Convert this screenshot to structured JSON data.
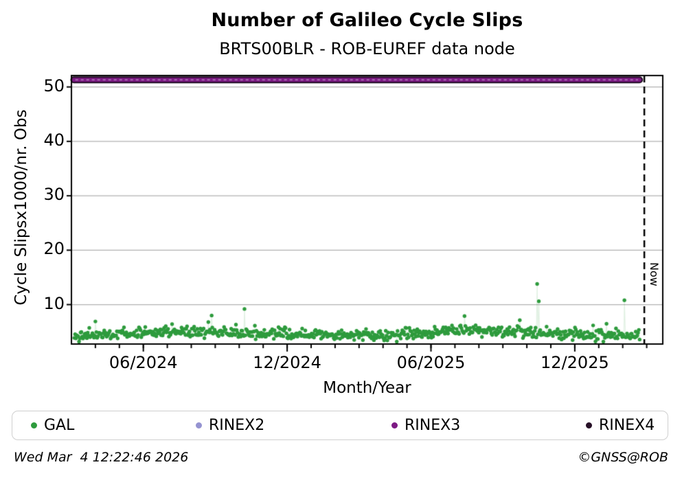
{
  "chart_data": {
    "type": "scatter",
    "title": "Number of Galileo Cycle Slips",
    "subtitle": "BRTS00BLR - ROB-EUREF data node",
    "xlabel": "Month/Year",
    "ylabel": "Cycle Slipsx1000/nr. Obs",
    "x_axis": {
      "start_month": "03/2024",
      "months_span": 24.67,
      "minor_tick_every_months": 1,
      "major_ticks": [
        {
          "month_offset": 3,
          "label": "06/2024"
        },
        {
          "month_offset": 9,
          "label": "12/2024"
        },
        {
          "month_offset": 15,
          "label": "06/2025"
        },
        {
          "month_offset": 21,
          "label": "12/2025"
        }
      ],
      "now_marker": {
        "month_offset": 23.9,
        "label": "Now",
        "line_style": "dashed",
        "color": "#000000"
      }
    },
    "y_axis": {
      "min": 2.75,
      "max": 52.1,
      "ticks": [
        10,
        20,
        30,
        40,
        50
      ],
      "grid": true,
      "grid_color": "#b0b0b0"
    },
    "series": [
      {
        "name": "GAL",
        "type": "daily-scatter",
        "color": "#2e9b3d",
        "connector_line_color": "rgba(47,155,61,0.15)",
        "marker_radius": 2.7,
        "month_start": 0.12,
        "month_end": 23.72,
        "points_per_month": 30.4,
        "random_seed": 42,
        "noise_sigma": 0.5,
        "value_floor": 3.2,
        "value_ceil": 7.4,
        "upper_tail_probability": 0.045,
        "upper_tail_max": 1.4,
        "baseline_monthly_mean": [
          [
            0.12,
            4.35
          ],
          [
            1.5,
            4.6
          ],
          [
            3,
            4.85
          ],
          [
            4.5,
            5.0
          ],
          [
            6,
            5.0
          ],
          [
            7.5,
            4.7
          ],
          [
            9,
            4.55
          ],
          [
            10.5,
            4.35
          ],
          [
            12,
            4.35
          ],
          [
            13.5,
            4.45
          ],
          [
            14.5,
            4.7
          ],
          [
            16,
            5.1
          ],
          [
            17.5,
            5.2
          ],
          [
            19,
            4.9
          ],
          [
            19.8,
            4.5
          ],
          [
            21,
            4.4
          ],
          [
            23.72,
            4.35
          ]
        ],
        "outliers": [
          [
            1.0,
            6.9
          ],
          [
            5.85,
            8.0
          ],
          [
            7.22,
            9.2
          ],
          [
            16.4,
            7.9
          ],
          [
            19.43,
            13.8
          ],
          [
            19.5,
            10.6
          ],
          [
            23.07,
            10.8
          ]
        ]
      },
      {
        "name": "RINEX2",
        "type": "scatter",
        "color": "#9593d1",
        "points": []
      },
      {
        "name": "RINEX3",
        "type": "constant-line",
        "color": "#7d1a84",
        "edge_color": "#1d0a20",
        "highlight_dash_color": "#aa6fb3",
        "value": 51.3,
        "month_start": 0.1,
        "month_end": 23.7
      },
      {
        "name": "RINEX4",
        "type": "scatter",
        "color": "#271027",
        "points": []
      }
    ]
  },
  "legend": {
    "items": [
      {
        "label": "GAL",
        "color": "#2e9b3d"
      },
      {
        "label": "RINEX2",
        "color": "#9593d1"
      },
      {
        "label": "RINEX3",
        "color": "#7d1a84"
      },
      {
        "label": "RINEX4",
        "color": "#271027"
      }
    ]
  },
  "footer": {
    "left": "Wed Mar  4 12:22:46 2026",
    "right": "©GNSS@ROB"
  }
}
